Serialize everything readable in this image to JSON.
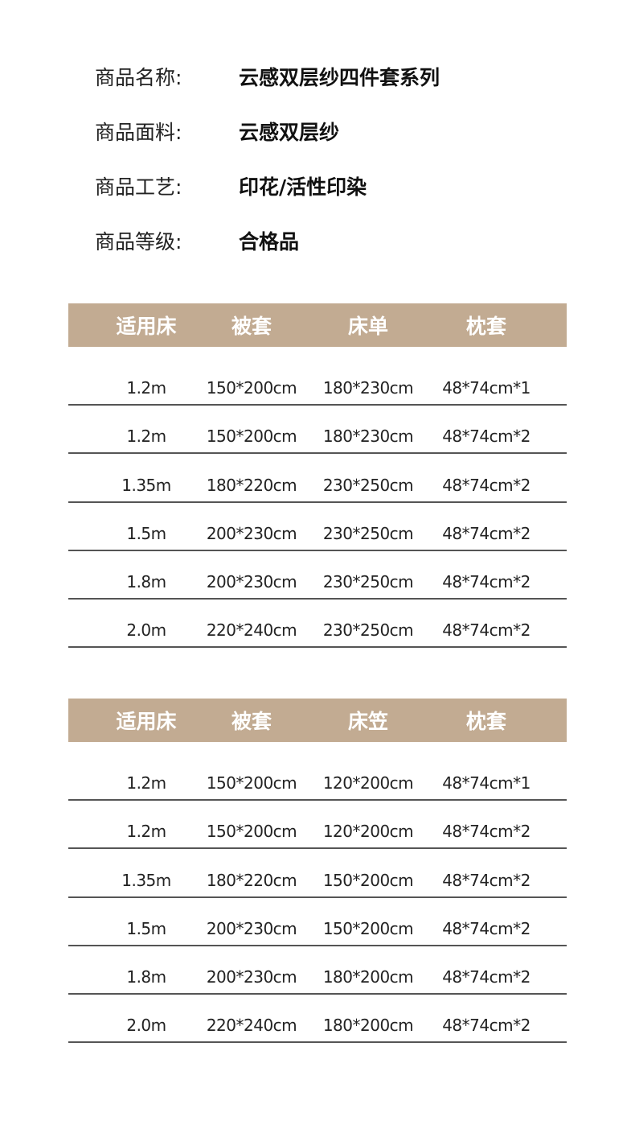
{
  "colors": {
    "header_bg": "#c2ab92",
    "rule": "#555555"
  },
  "info": [
    {
      "label": "商品名称:",
      "value": "云感双层纱四件套系列"
    },
    {
      "label": "商品面料:",
      "value": "云感双层纱"
    },
    {
      "label": "商品工艺:",
      "value": "印花/活性印染"
    },
    {
      "label": "商品等级:",
      "value": "合格品"
    }
  ],
  "tables": [
    {
      "headers": [
        "适用床",
        "被套",
        "床单",
        "枕套"
      ],
      "rows": [
        [
          "1.2m",
          "150*200cm",
          "180*230cm",
          "48*74cm*1"
        ],
        [
          "1.2m",
          "150*200cm",
          "180*230cm",
          "48*74cm*2"
        ],
        [
          "1.35m",
          "180*220cm",
          "230*250cm",
          "48*74cm*2"
        ],
        [
          "1.5m",
          "200*230cm",
          "230*250cm",
          "48*74cm*2"
        ],
        [
          "1.8m",
          "200*230cm",
          "230*250cm",
          "48*74cm*2"
        ],
        [
          "2.0m",
          "220*240cm",
          "230*250cm",
          "48*74cm*2"
        ]
      ]
    },
    {
      "headers": [
        "适用床",
        "被套",
        "床笠",
        "枕套"
      ],
      "rows": [
        [
          "1.2m",
          "150*200cm",
          "120*200cm",
          "48*74cm*1"
        ],
        [
          "1.2m",
          "150*200cm",
          "120*200cm",
          "48*74cm*2"
        ],
        [
          "1.35m",
          "180*220cm",
          "150*200cm",
          "48*74cm*2"
        ],
        [
          "1.5m",
          "200*230cm",
          "150*200cm",
          "48*74cm*2"
        ],
        [
          "1.8m",
          "200*230cm",
          "180*200cm",
          "48*74cm*2"
        ],
        [
          "2.0m",
          "220*240cm",
          "180*200cm",
          "48*74cm*2"
        ]
      ]
    }
  ]
}
